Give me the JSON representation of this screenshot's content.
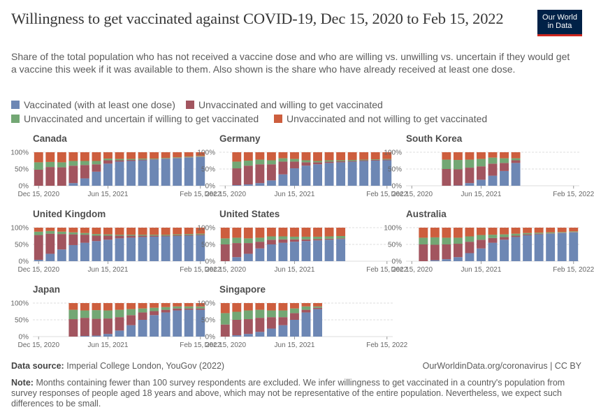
{
  "header": {
    "title": "Willingness to get vaccinated against COVID-19, Dec 15, 2020 to Feb 15, 2022",
    "subtitle": "Share of the total population who has not received a vaccine dose and who are willing vs. unwilling vs. uncertain if they would get a vaccine this week if it was available to them. Also shown is the share who have already received at least one dose.",
    "logo_line1": "Our World",
    "logo_line2": "in Data"
  },
  "colors": {
    "vaccinated": "#6d87b4",
    "willing": "#a2555f",
    "uncertain": "#73a774",
    "unwilling": "#cd5e3e",
    "logo_bg": "#002147",
    "logo_bar": "#ce261e"
  },
  "legend": [
    {
      "key": "vaccinated",
      "label": "Vaccinated (with at least one dose)"
    },
    {
      "key": "willing",
      "label": "Unvaccinated and willing to get vaccinated"
    },
    {
      "key": "uncertain",
      "label": "Unvaccinated and uncertain if willing to get vaccinated"
    },
    {
      "key": "unwilling",
      "label": "Unvaccinated and not willing to get vaccinated"
    }
  ],
  "chart_data": {
    "type": "bar",
    "stacked": true,
    "x_tick_labels": [
      "Dec 15, 2020",
      "Jun 15, 2021",
      "Feb 15, 2022"
    ],
    "y_tick_labels": [
      "0%",
      "50%",
      "100%"
    ],
    "ylim": [
      0,
      100
    ],
    "months": [
      "Dec 2020",
      "Jan 2021",
      "Feb 2021",
      "Mar 2021",
      "Apr 2021",
      "May 2021",
      "Jun 2021",
      "Jul 2021",
      "Aug 2021",
      "Sep 2021",
      "Oct 2021",
      "Nov 2021",
      "Dec 2021",
      "Jan 2022",
      "Feb 2022"
    ],
    "series_order": [
      "vaccinated",
      "willing",
      "uncertain",
      "unwilling"
    ],
    "panels": [
      {
        "country": "Canada",
        "start": 0,
        "vaccinated": [
          0,
          0,
          0,
          8,
          22,
          42,
          66,
          72,
          74,
          76,
          78,
          80,
          82,
          84,
          86
        ],
        "willing": [
          48,
          56,
          55,
          52,
          40,
          22,
          10,
          4,
          3,
          2,
          1,
          1,
          1,
          1,
          1
        ],
        "uncertain": [
          22,
          15,
          15,
          14,
          12,
          10,
          5,
          4,
          3,
          3,
          2,
          2,
          2,
          2,
          2
        ]
      },
      {
        "country": "Germany",
        "start": 1,
        "vaccinated": [
          2,
          4,
          8,
          16,
          34,
          52,
          60,
          64,
          68,
          70,
          72,
          74,
          75,
          76
        ],
        "willing": [
          50,
          56,
          56,
          48,
          38,
          20,
          10,
          6,
          4,
          3,
          2,
          2,
          2,
          2
        ],
        "uncertain": [
          20,
          15,
          14,
          12,
          10,
          8,
          6,
          4,
          4,
          3,
          3,
          2,
          2,
          2
        ]
      },
      {
        "country": "South Korea",
        "start": 3,
        "vaccinated": [
          0,
          1,
          8,
          18,
          30,
          44,
          68
        ],
        "willing": [
          50,
          48,
          46,
          40,
          36,
          24,
          8
        ],
        "uncertain": [
          28,
          28,
          24,
          22,
          18,
          14,
          6
        ]
      },
      {
        "country": "United Kingdom",
        "start": 0,
        "vaccinated": [
          4,
          22,
          35,
          48,
          55,
          60,
          64,
          68,
          70,
          72,
          73,
          74,
          75,
          76,
          77
        ],
        "willing": [
          74,
          60,
          46,
          32,
          24,
          16,
          12,
          8,
          6,
          4,
          3,
          2,
          2,
          2,
          2
        ],
        "uncertain": [
          10,
          8,
          7,
          6,
          5,
          5,
          4,
          3,
          3,
          3,
          3,
          3,
          3,
          3,
          3
        ]
      },
      {
        "country": "United States",
        "start": 0,
        "vaccinated": [
          0,
          12,
          22,
          38,
          50,
          55,
          58,
          60,
          62,
          64,
          66
        ],
        "willing": [
          50,
          42,
          32,
          20,
          14,
          10,
          7,
          5,
          4,
          3,
          2
        ],
        "uncertain": [
          18,
          16,
          14,
          12,
          10,
          9,
          8,
          8,
          7,
          7,
          7
        ]
      },
      {
        "country": "Australia",
        "start": 1,
        "vaccinated": [
          0,
          3,
          6,
          12,
          24,
          38,
          55,
          64,
          72,
          77,
          80,
          82,
          84,
          86
        ],
        "willing": [
          50,
          46,
          44,
          40,
          34,
          26,
          14,
          8,
          4,
          3,
          2,
          1,
          1,
          1
        ],
        "uncertain": [
          20,
          22,
          20,
          18,
          16,
          14,
          10,
          8,
          6,
          4,
          3,
          3,
          2,
          2
        ]
      },
      {
        "country": "Japan",
        "start": 3,
        "vaccinated": [
          0,
          2,
          3,
          8,
          18,
          34,
          50,
          64,
          72,
          78,
          80,
          80
        ],
        "willing": [
          52,
          54,
          50,
          46,
          40,
          30,
          22,
          12,
          8,
          6,
          4,
          4
        ],
        "uncertain": [
          28,
          22,
          26,
          24,
          22,
          18,
          12,
          10,
          8,
          6,
          6,
          6
        ]
      },
      {
        "country": "Singapore",
        "start": 0,
        "vaccinated": [
          0,
          4,
          8,
          14,
          24,
          34,
          50,
          72,
          82
        ],
        "willing": [
          36,
          46,
          44,
          42,
          34,
          24,
          20,
          8,
          4
        ],
        "uncertain": [
          34,
          24,
          26,
          24,
          20,
          20,
          14,
          10,
          4
        ]
      }
    ]
  },
  "footer": {
    "source_label": "Data source:",
    "source_text": "Imperial College London, YouGov (2022)",
    "credit": "OurWorldinData.org/coronavirus | CC BY",
    "note_label": "Note:",
    "note_text": "Months containing fewer than 100 survey respondents are excluded. We infer willingness to get vaccinated in a country's population from survey responses of people aged 18 years and above, which may not be representative of the entire population. Nevertheless, we expect such differences to be small."
  }
}
